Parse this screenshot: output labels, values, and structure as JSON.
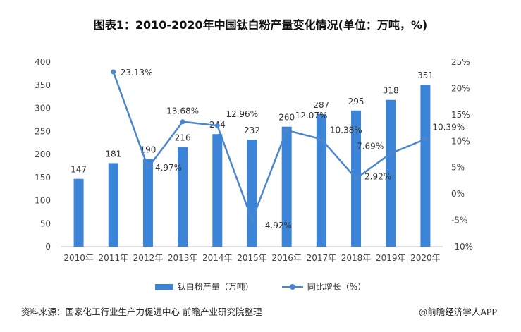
{
  "chart_data": {
    "type": "bar",
    "title": "图表1：2010-2020年中国钛白粉产量变化情况(单位：万吨，%)",
    "categories": [
      "2010年",
      "2011年",
      "2012年",
      "2013年",
      "2014年",
      "2015年",
      "2016年",
      "2017年",
      "2018年",
      "2019年",
      "2020年"
    ],
    "series": [
      {
        "name": "钛白粉产量（万吨）",
        "type": "bar",
        "axis": "left",
        "color": "#3c84d8",
        "values": [
          147,
          181,
          190,
          216,
          244,
          232,
          260,
          287,
          295,
          318,
          351
        ]
      },
      {
        "name": "同比增长（%）",
        "type": "line",
        "axis": "right",
        "color": "#4a86cf",
        "values": [
          null,
          23.13,
          4.97,
          13.68,
          12.96,
          -4.92,
          12.07,
          10.38,
          2.92,
          7.69,
          10.39
        ]
      }
    ],
    "bar_value_labels": [
      "147",
      "181",
      "190",
      "216",
      "244",
      "232",
      "260",
      "287",
      "295",
      "318",
      "351"
    ],
    "line_value_labels": [
      "",
      "23.13%",
      "4.97%",
      "13.68%",
      "12.96%",
      "-4.92%",
      "12.07%",
      "10.38%",
      "2.92%",
      "7.69%",
      "10.39%"
    ],
    "y_left": {
      "lim": [
        0,
        400
      ],
      "ticks": [
        "0",
        "50",
        "100",
        "150",
        "200",
        "250",
        "300",
        "350",
        "400"
      ]
    },
    "y_right": {
      "lim": [
        -10,
        25
      ],
      "ticks": [
        "-10%",
        "-5%",
        "0%",
        "5%",
        "10%",
        "15%",
        "20%",
        "25%"
      ]
    },
    "grid": false,
    "legend_position": "bottom"
  },
  "legend": {
    "bar_label": "钛白粉产量（万吨）",
    "line_label": "同比增长（%）"
  },
  "footer": {
    "source": "资料来源：国家化工行业生产力促进中心 前瞻产业研究院整理",
    "brand": "@前瞻经济学人APP"
  }
}
